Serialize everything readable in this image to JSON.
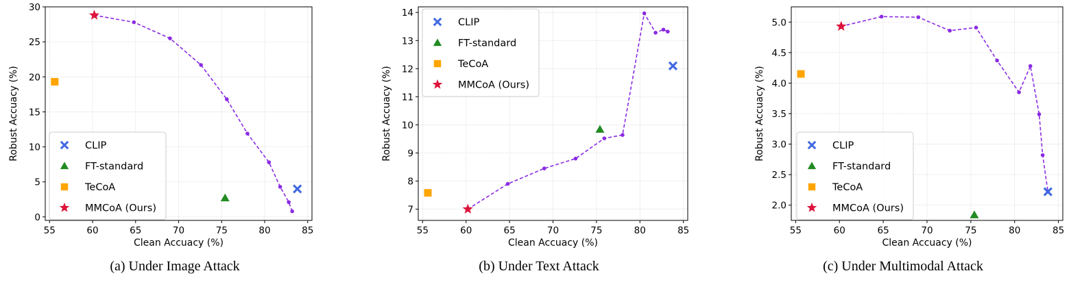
{
  "chart_data": [
    {
      "type": "scatter",
      "caption": "(a) Under Image Attack",
      "xlabel": "Clean Accuacy (%)",
      "ylabel": "Robust Accuacy (%)",
      "xlim": [
        54.5,
        85.5
      ],
      "ylim": [
        -0.5,
        30
      ],
      "xticks": [
        55,
        60,
        65,
        70,
        75,
        80,
        85
      ],
      "yticks": [
        0,
        5,
        10,
        15,
        20,
        25,
        30
      ],
      "grid": true,
      "legend_position": "lower-left",
      "trade_off_curve": {
        "x": [
          60.2,
          64.8,
          69.0,
          72.6,
          75.6,
          78.0,
          80.5,
          81.8,
          82.8,
          83.2
        ],
        "y": [
          28.8,
          27.8,
          25.5,
          21.7,
          16.8,
          11.9,
          7.8,
          4.3,
          2.1,
          0.8
        ]
      },
      "series": [
        {
          "name": "CLIP",
          "marker": "x",
          "color": "#4169e1",
          "x": [
            83.8
          ],
          "y": [
            4.0
          ]
        },
        {
          "name": "FT-standard",
          "marker": "triangle",
          "color": "#228b22",
          "x": [
            75.4
          ],
          "y": [
            2.7
          ]
        },
        {
          "name": "TeCoA",
          "marker": "square",
          "color": "#ffa500",
          "x": [
            55.6
          ],
          "y": [
            19.3
          ]
        },
        {
          "name": "MMCoA (Ours)",
          "marker": "star",
          "color": "#dc143c",
          "x": [
            60.2
          ],
          "y": [
            28.8
          ]
        }
      ]
    },
    {
      "type": "scatter",
      "caption": "(b) Under Text Attack",
      "xlabel": "Clean Accuacy (%)",
      "ylabel": "Robust Accuacy (%)",
      "xlim": [
        54.5,
        85.5
      ],
      "ylim": [
        6.6,
        14.2
      ],
      "xticks": [
        55,
        60,
        65,
        70,
        75,
        80,
        85
      ],
      "yticks": [
        7,
        8,
        9,
        10,
        11,
        12,
        13,
        14
      ],
      "grid": true,
      "legend_position": "upper-left",
      "trade_off_curve": {
        "x": [
          60.2,
          64.8,
          69.0,
          72.6,
          75.9,
          78.0,
          80.5,
          81.8,
          82.7,
          83.2
        ],
        "y": [
          7.0,
          7.9,
          8.45,
          8.8,
          9.52,
          9.64,
          13.97,
          13.28,
          13.39,
          13.32
        ]
      },
      "series": [
        {
          "name": "CLIP",
          "marker": "x",
          "color": "#4169e1",
          "x": [
            83.8
          ],
          "y": [
            12.1
          ]
        },
        {
          "name": "FT-standard",
          "marker": "triangle",
          "color": "#228b22",
          "x": [
            75.4
          ],
          "y": [
            9.84
          ]
        },
        {
          "name": "TeCoA",
          "marker": "square",
          "color": "#ffa500",
          "x": [
            55.6
          ],
          "y": [
            7.58
          ]
        },
        {
          "name": "MMCoA (Ours)",
          "marker": "star",
          "color": "#dc143c",
          "x": [
            60.2
          ],
          "y": [
            7.0
          ]
        }
      ]
    },
    {
      "type": "scatter",
      "caption": "(c) Under Multimodal Attack",
      "xlabel": "Clean Accuacy (%)",
      "ylabel": "Robust Accuacy (%)",
      "xlim": [
        54.5,
        85.5
      ],
      "ylim": [
        1.75,
        5.25
      ],
      "xticks": [
        55,
        60,
        65,
        70,
        75,
        80,
        85
      ],
      "yticks": [
        2.0,
        2.5,
        3.0,
        3.5,
        4.0,
        4.5,
        5.0
      ],
      "ytick_labels": [
        "2.0",
        "2.5",
        "3.0",
        "3.5",
        "4.0",
        "4.5",
        "5.0"
      ],
      "grid": true,
      "legend_position": "lower-left",
      "trade_off_curve": {
        "x": [
          60.2,
          64.8,
          69.0,
          72.6,
          75.6,
          78.0,
          80.5,
          81.8,
          82.8,
          83.2,
          83.8
        ],
        "y": [
          4.93,
          5.09,
          5.08,
          4.86,
          4.91,
          4.37,
          3.85,
          4.28,
          3.49,
          2.82,
          2.22
        ]
      },
      "series": [
        {
          "name": "CLIP",
          "marker": "x",
          "color": "#4169e1",
          "x": [
            83.8
          ],
          "y": [
            2.22
          ]
        },
        {
          "name": "FT-standard",
          "marker": "triangle",
          "color": "#228b22",
          "x": [
            75.4
          ],
          "y": [
            1.84
          ]
        },
        {
          "name": "TeCoA",
          "marker": "square",
          "color": "#ffa500",
          "x": [
            55.6
          ],
          "y": [
            4.15
          ]
        },
        {
          "name": "MMCoA (Ours)",
          "marker": "star",
          "color": "#dc143c",
          "x": [
            60.2
          ],
          "y": [
            4.93
          ]
        }
      ]
    }
  ],
  "colors": {
    "curve": "#8a2be2",
    "grid": "#d9d9d9"
  }
}
